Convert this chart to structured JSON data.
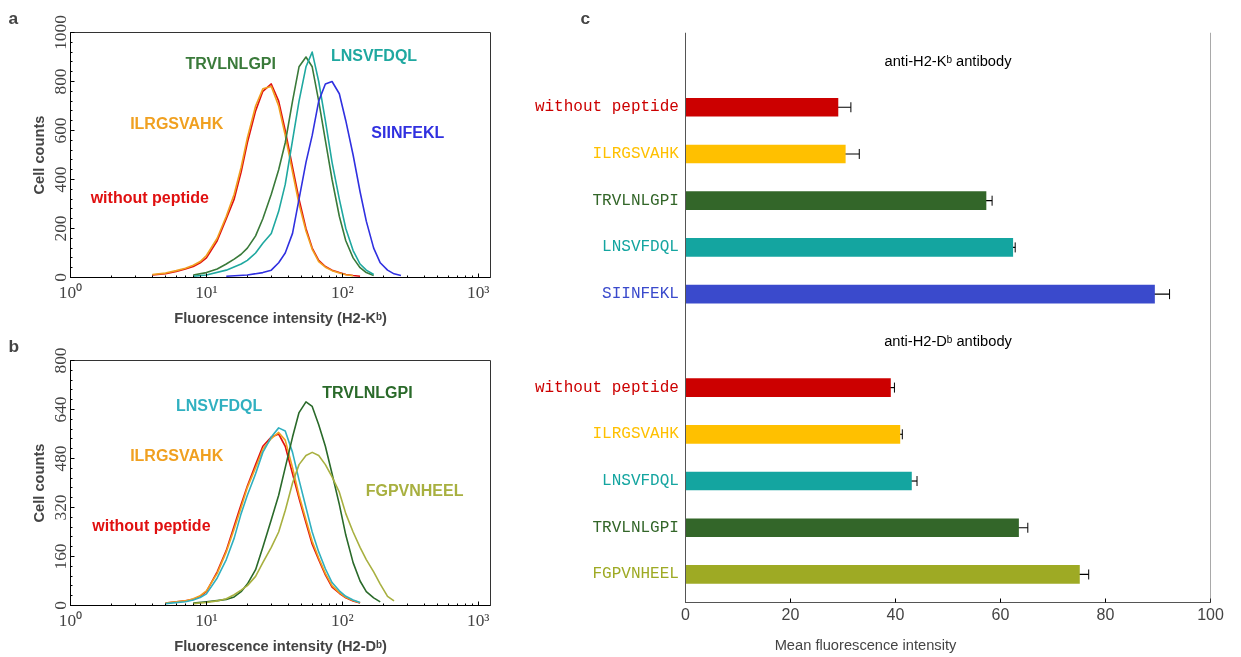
{
  "chart_data": [
    {
      "type": "line",
      "title": "a",
      "xlabel": "Fluorescence intensity (H2-Kᵇ)",
      "ylabel": "Cell counts",
      "log": "x",
      "xlim": [
        1,
        1230
      ],
      "ylim": [
        0,
        1000
      ],
      "xticks": [
        {
          "value": 1,
          "label": "10⁰"
        },
        {
          "value": 10,
          "label": "10¹"
        },
        {
          "value": 100,
          "label": "10²"
        },
        {
          "value": 1000,
          "label": "10³"
        }
      ],
      "yticks": [
        0,
        200,
        400,
        600,
        800,
        1000
      ],
      "grid": false,
      "series": [
        {
          "name": "without peptide",
          "color": "#e01010",
          "x": [
            4,
            5,
            6,
            7,
            8,
            9,
            10,
            12,
            14,
            16,
            18,
            20,
            23,
            26,
            30,
            34,
            38,
            43,
            48,
            54,
            60,
            67,
            75,
            84,
            95,
            106,
            120,
            135
          ],
          "values": [
            10,
            15,
            25,
            35,
            45,
            60,
            80,
            150,
            240,
            320,
            430,
            550,
            680,
            760,
            790,
            720,
            600,
            450,
            320,
            200,
            120,
            70,
            45,
            30,
            20,
            12,
            8,
            5
          ]
        },
        {
          "name": "ILRGSVAHK",
          "color": "#f0a020",
          "x": [
            4,
            5,
            6,
            7,
            8,
            9,
            10,
            12,
            14,
            16,
            18,
            20,
            23,
            26,
            30,
            34,
            38,
            43,
            48,
            54,
            60,
            67,
            75,
            84,
            95,
            106,
            120
          ],
          "values": [
            12,
            18,
            28,
            38,
            50,
            65,
            90,
            160,
            250,
            340,
            450,
            570,
            700,
            770,
            780,
            700,
            580,
            430,
            300,
            190,
            115,
            65,
            42,
            28,
            18,
            11,
            7
          ]
        },
        {
          "name": "TRVLNLGPI",
          "color": "#3a7a3a",
          "x": [
            8,
            10,
            12,
            14,
            16,
            18,
            20,
            23,
            26,
            30,
            34,
            38,
            43,
            48,
            54,
            60,
            67,
            75,
            84,
            95,
            106,
            120,
            135,
            150,
            170
          ],
          "values": [
            10,
            20,
            35,
            55,
            75,
            95,
            120,
            170,
            240,
            340,
            440,
            550,
            720,
            860,
            900,
            860,
            720,
            560,
            400,
            250,
            150,
            80,
            40,
            20,
            8
          ]
        },
        {
          "name": "LNSVFDQL",
          "color": "#1fa8a0",
          "x": [
            8,
            10,
            14,
            18,
            20,
            23,
            26,
            30,
            34,
            38,
            43,
            48,
            54,
            60,
            67,
            75,
            84,
            95,
            106,
            120,
            135,
            150,
            170
          ],
          "values": [
            5,
            10,
            30,
            55,
            70,
            100,
            140,
            180,
            270,
            380,
            560,
            720,
            860,
            920,
            800,
            640,
            470,
            320,
            200,
            110,
            55,
            30,
            12
          ]
        },
        {
          "name": "SIINFEKL",
          "color": "#3030e0",
          "x": [
            14,
            20,
            26,
            30,
            34,
            38,
            43,
            48,
            54,
            60,
            67,
            75,
            84,
            95,
            106,
            120,
            135,
            150,
            170,
            190,
            215,
            240,
            270
          ],
          "values": [
            5,
            10,
            20,
            30,
            60,
            100,
            180,
            320,
            470,
            580,
            720,
            790,
            800,
            750,
            640,
            500,
            350,
            230,
            120,
            60,
            30,
            15,
            8
          ]
        }
      ]
    },
    {
      "type": "line",
      "title": "b",
      "xlabel": "Fluorescence intensity (H2-Dᵇ)",
      "ylabel": "Cell counts",
      "log": "x",
      "xlim": [
        1,
        1230
      ],
      "ylim": [
        0,
        800
      ],
      "xticks": [
        {
          "value": 1,
          "label": "10⁰"
        },
        {
          "value": 10,
          "label": "10¹"
        },
        {
          "value": 100,
          "label": "10²"
        },
        {
          "value": 1000,
          "label": "10³"
        }
      ],
      "yticks": [
        0,
        160,
        320,
        480,
        640,
        800
      ],
      "grid": false,
      "series": [
        {
          "name": "without peptide",
          "color": "#e01010",
          "x": [
            5,
            7,
            8,
            9,
            10,
            12,
            14,
            16,
            18,
            20,
            23,
            26,
            30,
            34,
            38,
            43,
            48,
            54,
            60,
            67,
            75,
            84,
            95,
            106,
            120,
            135
          ],
          "values": [
            8,
            15,
            20,
            30,
            45,
            110,
            180,
            260,
            330,
            390,
            460,
            520,
            550,
            560,
            520,
            430,
            350,
            270,
            200,
            150,
            100,
            60,
            40,
            25,
            15,
            8
          ]
        },
        {
          "name": "ILRGSVAHK",
          "color": "#f0a020",
          "x": [
            5,
            7,
            8,
            9,
            10,
            12,
            14,
            16,
            18,
            20,
            23,
            26,
            30,
            34,
            38,
            43,
            48,
            54,
            60,
            67,
            75,
            84,
            95,
            106,
            120,
            135
          ],
          "values": [
            8,
            15,
            22,
            32,
            48,
            105,
            175,
            250,
            320,
            385,
            450,
            510,
            545,
            565,
            540,
            450,
            360,
            280,
            210,
            155,
            105,
            65,
            42,
            27,
            16,
            9
          ]
        },
        {
          "name": "LNSVFDQL",
          "color": "#30b0c0",
          "x": [
            5,
            7,
            8,
            9,
            10,
            12,
            14,
            16,
            18,
            20,
            23,
            26,
            30,
            34,
            38,
            43,
            48,
            54,
            60,
            67,
            75,
            84,
            95,
            106,
            120,
            135
          ],
          "values": [
            6,
            12,
            18,
            26,
            38,
            90,
            150,
            220,
            300,
            360,
            430,
            500,
            550,
            580,
            570,
            500,
            410,
            320,
            240,
            175,
            120,
            75,
            48,
            30,
            18,
            10
          ]
        },
        {
          "name": "TRVLNLGPI",
          "color": "#2a6a2a",
          "x": [
            8,
            10,
            12,
            14,
            16,
            18,
            20,
            23,
            26,
            30,
            34,
            38,
            43,
            48,
            54,
            60,
            67,
            75,
            84,
            95,
            106,
            120,
            135,
            150,
            170,
            190
          ],
          "values": [
            8,
            12,
            16,
            20,
            28,
            45,
            70,
            117,
            190,
            280,
            360,
            450,
            550,
            630,
            665,
            650,
            590,
            520,
            430,
            330,
            230,
            140,
            80,
            45,
            25,
            12
          ]
        },
        {
          "name": "FGPVNHEEL",
          "color": "#a8b040",
          "x": [
            8,
            10,
            12,
            14,
            16,
            18,
            20,
            23,
            26,
            30,
            34,
            38,
            43,
            48,
            54,
            60,
            67,
            75,
            84,
            95,
            106,
            120,
            135,
            150,
            170,
            190,
            215,
            240
          ],
          "values": [
            6,
            10,
            15,
            22,
            35,
            50,
            65,
            95,
            140,
            190,
            240,
            310,
            400,
            460,
            490,
            500,
            490,
            460,
            420,
            370,
            300,
            240,
            190,
            150,
            110,
            70,
            30,
            15
          ]
        }
      ]
    },
    {
      "type": "bar",
      "title": "c",
      "orientation": "horizontal",
      "xlabel": "Mean fluorescence intensity",
      "xlim": [
        0,
        100
      ],
      "xticks": [
        0,
        20,
        40,
        60,
        80,
        100
      ],
      "grid": false,
      "categories": [
        null,
        "without peptide",
        "ILRGSVAHK",
        "TRVLNLGPI",
        "LNSVFDQL",
        "SIINFEKL",
        null,
        "without peptide",
        "ILRGSVAHK",
        "LNSVFDQL",
        "TRVLNLGPI",
        "FGPVNHEEL"
      ],
      "values": [
        null,
        29.1,
        30.5,
        57.3,
        62.4,
        89.4,
        null,
        39.1,
        40.9,
        43.1,
        63.5,
        75.1
      ],
      "errors": [
        null,
        2.4,
        2.6,
        1.1,
        0.4,
        2.8,
        null,
        0.7,
        0.4,
        1.0,
        1.7,
        1.7
      ],
      "colors": [
        "#ffffff",
        "#cc0000",
        "#ffc000",
        "#336629",
        "#14a5a0",
        "#3a4acc",
        "#ffffff",
        "#cc0000",
        "#ffc000",
        "#14a5a0",
        "#336629",
        "#9eaa24"
      ],
      "annotations": [
        "anti-H2-Kᵇ antibody",
        "anti-H2-Dᵇ antibody"
      ]
    }
  ]
}
